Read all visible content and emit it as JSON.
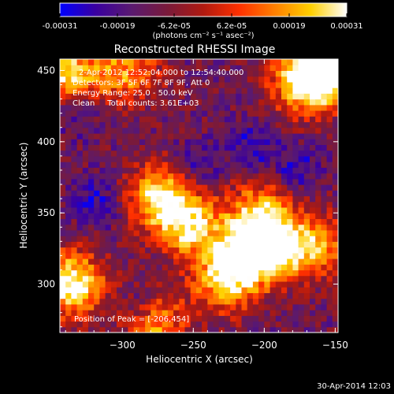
{
  "chart_data": {
    "type": "heatmap",
    "title": "Reconstructed RHESSI Image",
    "xlabel": "Heliocentric X (arcsec)",
    "ylabel": "Heliocentric Y (arcsec)",
    "xlim": [
      -344,
      -148
    ],
    "ylim": [
      266,
      458
    ],
    "x_ticks": [
      -300,
      -250,
      -200,
      -150
    ],
    "x_tick_labels": [
      "−300",
      "−250",
      "−200",
      "−150"
    ],
    "y_ticks": [
      300,
      350,
      400,
      450
    ],
    "y_tick_labels": [
      "300",
      "350",
      "400",
      "450"
    ],
    "colorbar": {
      "range": [
        -0.00031,
        0.00031
      ],
      "tick_labels": [
        "-0.00031",
        "-0.00019",
        "-6.2e-05",
        "6.2e-05",
        "0.00019",
        "0.00031"
      ],
      "unit_label": "(photons cm⁻² s⁻¹ asec⁻²)",
      "colormap": [
        "#0000ff",
        "#3a00a0",
        "#5a1a70",
        "#7a1a3a",
        "#b01a10",
        "#ff3000",
        "#ff8000",
        "#ffd000",
        "#ffffff"
      ]
    },
    "annotations": [
      "2-Apr-2012 12:52:04.000 to 12:54:40.000",
      "Detectors: 3F 5F 6F 7F 8F 9F, Att 0",
      "Energy Range: 25.0 - 50.0 keV",
      "Clean     Total counts: 3.61E+03"
    ],
    "peak_label": "Position of Peak = [-206,454]",
    "peak_position": [
      -206,
      454
    ],
    "sources": [
      {
        "x": -215,
        "y": 320,
        "level": 0.85
      },
      {
        "x": -190,
        "y": 325,
        "level": 0.8
      },
      {
        "x": -255,
        "y": 340,
        "level": 0.75
      },
      {
        "x": -275,
        "y": 360,
        "level": 0.85
      },
      {
        "x": -205,
        "y": 350,
        "level": 0.6
      },
      {
        "x": -230,
        "y": 300,
        "level": 0.7
      },
      {
        "x": -160,
        "y": 325,
        "level": 0.5
      },
      {
        "x": -338,
        "y": 298,
        "level": 1.0
      },
      {
        "x": -155,
        "y": 450,
        "level": 1.0
      },
      {
        "x": -175,
        "y": 440,
        "level": 0.85
      },
      {
        "x": -340,
        "y": 445,
        "level": 0.8
      },
      {
        "x": -298,
        "y": 448,
        "level": 0.6
      },
      {
        "x": -280,
        "y": 270,
        "level": 0.7
      }
    ]
  },
  "footer": {
    "timestamp": "30-Apr-2014 12:03"
  }
}
